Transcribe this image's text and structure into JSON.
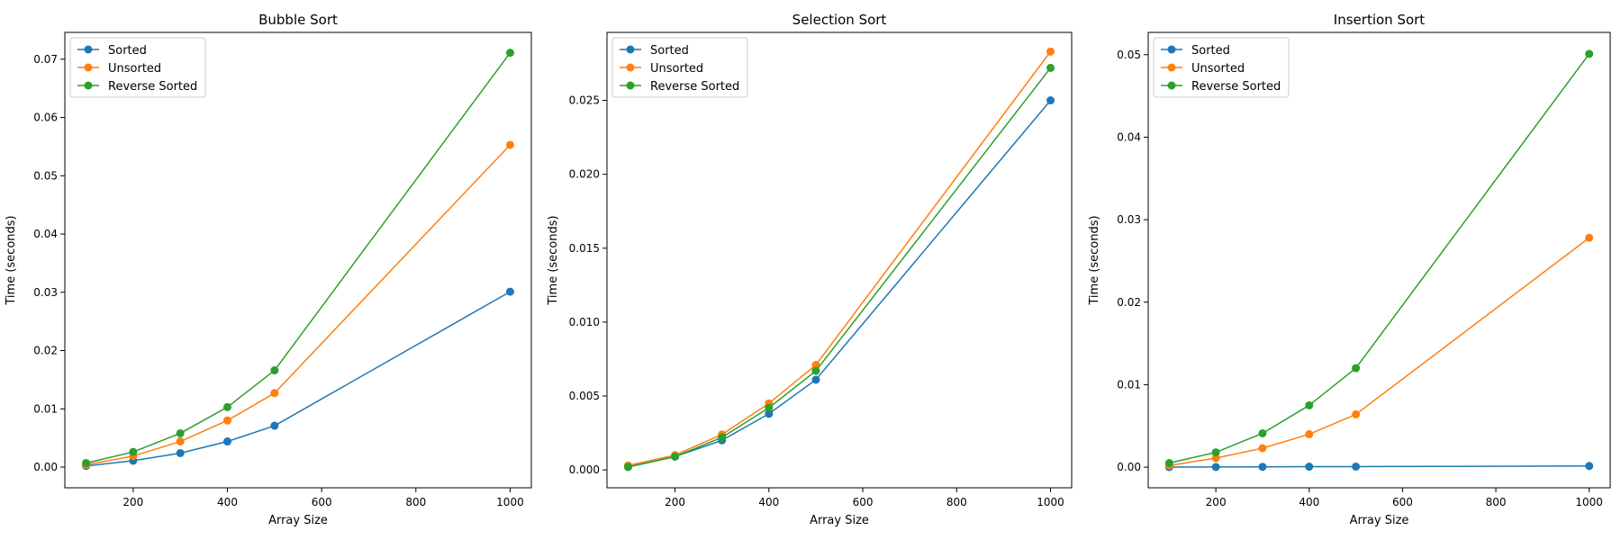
{
  "chart_data": [
    {
      "type": "line",
      "title": "Bubble Sort",
      "xlabel": "Array Size",
      "ylabel": "Time (seconds)",
      "x": [
        100,
        200,
        300,
        400,
        500,
        1000
      ],
      "xlim": [
        55,
        1045
      ],
      "ylim": [
        -0.00355,
        0.0746
      ],
      "xticks": [
        200,
        400,
        600,
        800,
        1000
      ],
      "xtick_labels": [
        "200",
        "400",
        "600",
        "800",
        "1000"
      ],
      "yticks": [
        0,
        0.01,
        0.02,
        0.03,
        0.04,
        0.05,
        0.06,
        0.07
      ],
      "ytick_labels": [
        "0.00",
        "0.01",
        "0.02",
        "0.03",
        "0.04",
        "0.05",
        "0.06",
        "0.07"
      ],
      "legend_position": "top-left",
      "grid": false,
      "series": [
        {
          "name": "Sorted",
          "color": "#1f77b4",
          "values": [
            0.0002,
            0.0011,
            0.0024,
            0.0044,
            0.0071,
            0.0301
          ]
        },
        {
          "name": "Unsorted",
          "color": "#ff7f0e",
          "values": [
            0.0004,
            0.0019,
            0.0044,
            0.008,
            0.0127,
            0.0553
          ]
        },
        {
          "name": "Reverse Sorted",
          "color": "#2ca02c",
          "values": [
            0.0007,
            0.0026,
            0.0058,
            0.0103,
            0.0166,
            0.0711
          ]
        }
      ]
    },
    {
      "type": "line",
      "title": "Selection Sort",
      "xlabel": "Array Size",
      "ylabel": "Time (seconds)",
      "x": [
        100,
        200,
        300,
        400,
        500,
        1000
      ],
      "xlim": [
        55,
        1045
      ],
      "ylim": [
        -0.00121,
        0.0296
      ],
      "xticks": [
        200,
        400,
        600,
        800,
        1000
      ],
      "xtick_labels": [
        "200",
        "400",
        "600",
        "800",
        "1000"
      ],
      "yticks": [
        0,
        0.005,
        0.01,
        0.015,
        0.02,
        0.025
      ],
      "ytick_labels": [
        "0.000",
        "0.005",
        "0.010",
        "0.015",
        "0.020",
        "0.025"
      ],
      "legend_position": "top-left",
      "grid": false,
      "series": [
        {
          "name": "Sorted",
          "color": "#1f77b4",
          "values": [
            0.0002,
            0.0009,
            0.002,
            0.0038,
            0.0061,
            0.025
          ]
        },
        {
          "name": "Unsorted",
          "color": "#ff7f0e",
          "values": [
            0.0003,
            0.001,
            0.0024,
            0.0045,
            0.0071,
            0.0283
          ]
        },
        {
          "name": "Reverse Sorted",
          "color": "#2ca02c",
          "values": [
            0.0002,
            0.0009,
            0.0022,
            0.0042,
            0.0067,
            0.0272
          ]
        }
      ]
    },
    {
      "type": "line",
      "title": "Insertion Sort",
      "xlabel": "Array Size",
      "ylabel": "Time (seconds)",
      "x": [
        100,
        200,
        300,
        400,
        500,
        1000
      ],
      "xlim": [
        55,
        1045
      ],
      "ylim": [
        -0.0025,
        0.0527
      ],
      "xticks": [
        200,
        400,
        600,
        800,
        1000
      ],
      "xtick_labels": [
        "200",
        "400",
        "600",
        "800",
        "1000"
      ],
      "yticks": [
        0,
        0.01,
        0.02,
        0.03,
        0.04,
        0.05
      ],
      "ytick_labels": [
        "0.00",
        "0.01",
        "0.02",
        "0.03",
        "0.04",
        "0.05"
      ],
      "legend_position": "top-left",
      "grid": false,
      "series": [
        {
          "name": "Sorted",
          "color": "#1f77b4",
          "values": [
            1e-05,
            2e-05,
            4e-05,
            6e-05,
            7e-05,
            0.00014
          ]
        },
        {
          "name": "Unsorted",
          "color": "#ff7f0e",
          "values": [
            0.0002,
            0.0011,
            0.0023,
            0.004,
            0.0064,
            0.0278
          ]
        },
        {
          "name": "Reverse Sorted",
          "color": "#2ca02c",
          "values": [
            0.0005,
            0.0018,
            0.0041,
            0.0075,
            0.012,
            0.0501
          ]
        }
      ]
    }
  ]
}
